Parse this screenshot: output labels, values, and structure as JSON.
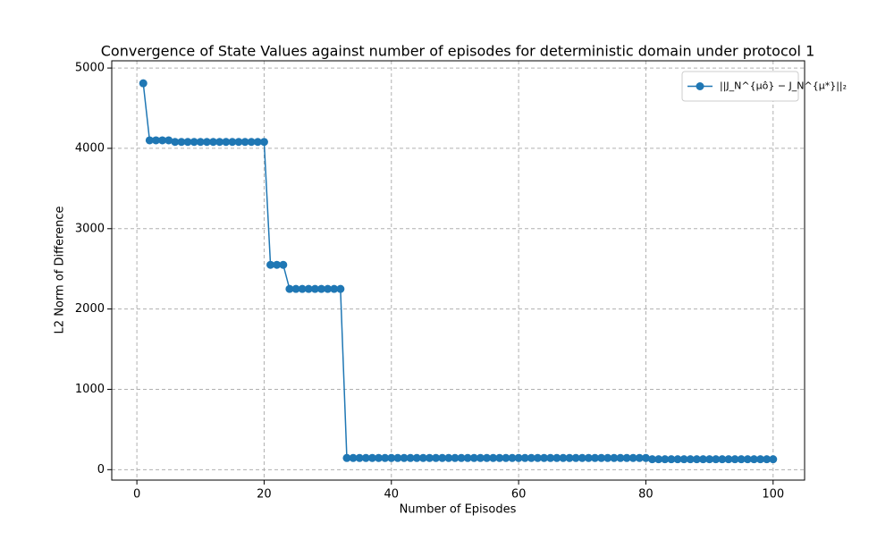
{
  "chart_data": {
    "type": "line",
    "title": "Convergence of State Values against number of episodes for deterministic domain under protocol 1",
    "x_label": "Number of Episodes",
    "y_label": "L2 Norm of Difference",
    "x": [
      1,
      2,
      3,
      4,
      5,
      6,
      7,
      8,
      9,
      10,
      11,
      12,
      13,
      14,
      15,
      16,
      17,
      18,
      19,
      20,
      21,
      22,
      23,
      24,
      25,
      26,
      27,
      28,
      29,
      30,
      31,
      32,
      33,
      34,
      35,
      36,
      37,
      38,
      39,
      40,
      41,
      42,
      43,
      44,
      45,
      46,
      47,
      48,
      49,
      50,
      51,
      52,
      53,
      54,
      55,
      56,
      57,
      58,
      59,
      60,
      61,
      62,
      63,
      64,
      65,
      66,
      67,
      68,
      69,
      70,
      71,
      72,
      73,
      74,
      75,
      76,
      77,
      78,
      79,
      80,
      81,
      82,
      83,
      84,
      85,
      86,
      87,
      88,
      89,
      90,
      91,
      92,
      93,
      94,
      95,
      96,
      97,
      98,
      99,
      100
    ],
    "series": [
      {
        "name": "||J_N^{μô} − J_N^{μ*}||₂",
        "color": "#1f77b4",
        "values": [
          4810,
          4100,
          4100,
          4100,
          4100,
          4080,
          4080,
          4080,
          4080,
          4080,
          4080,
          4080,
          4080,
          4080,
          4080,
          4080,
          4080,
          4080,
          4080,
          4080,
          2550,
          2550,
          2550,
          2250,
          2250,
          2250,
          2250,
          2250,
          2250,
          2250,
          2250,
          2250,
          145,
          145,
          145,
          145,
          145,
          145,
          145,
          145,
          145,
          145,
          145,
          145,
          145,
          145,
          145,
          145,
          145,
          145,
          145,
          145,
          145,
          145,
          145,
          145,
          145,
          145,
          145,
          145,
          145,
          145,
          145,
          145,
          145,
          145,
          145,
          145,
          145,
          145,
          145,
          145,
          145,
          145,
          145,
          145,
          145,
          145,
          145,
          145,
          130,
          130,
          130,
          130,
          130,
          130,
          130,
          130,
          130,
          130,
          130,
          130,
          130,
          130,
          130,
          130,
          130,
          130,
          130,
          130
        ]
      }
    ],
    "xlim": [
      -3.95,
      104.95
    ],
    "xticks": [
      0,
      20,
      40,
      60,
      80,
      100
    ],
    "ylim": [
      -130,
      5090
    ],
    "yticks": [
      0,
      1000,
      2000,
      3000,
      4000,
      5000
    ],
    "grid": true,
    "legend": "upper right"
  }
}
